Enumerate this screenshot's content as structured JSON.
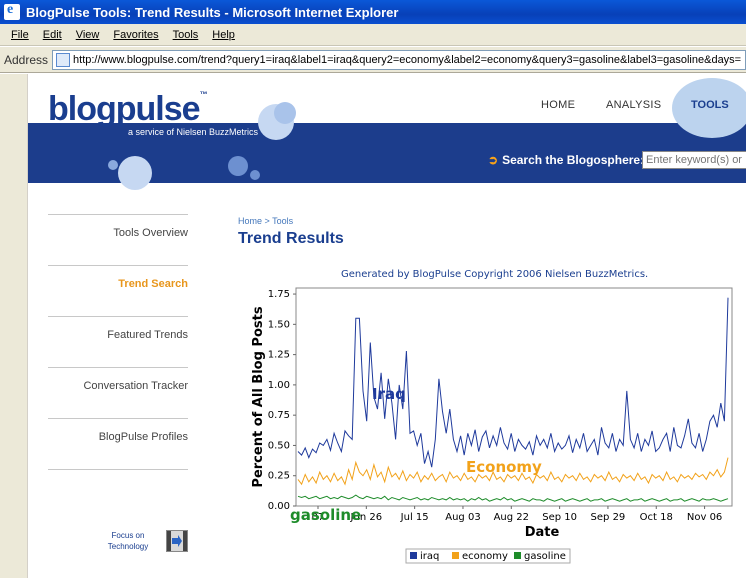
{
  "window": {
    "title": "BlogPulse Tools: Trend Results - Microsoft Internet Explorer"
  },
  "menu": [
    "File",
    "Edit",
    "View",
    "Favorites",
    "Tools",
    "Help"
  ],
  "address": {
    "label": "Address",
    "url": "http://www.blogpulse.com/trend?query1=iraq&label1=iraq&query2=economy&label2=economy&query3=gasoline&label3=gasoline&days="
  },
  "header": {
    "logo": "blogpulse",
    "logo_tm": "™",
    "tagline": "a service of Nielsen BuzzMetrics",
    "nav": {
      "home": "HOME",
      "analysis": "ANALYSIS",
      "tools": "TOOLS"
    },
    "search_label": "Search the Blogosphere:",
    "search_placeholder": "Enter keyword(s) or"
  },
  "sidebar": {
    "items": [
      "Tools Overview",
      "Trend Search",
      "Featured Trends",
      "Conversation Tracker",
      "BlogPulse Profiles"
    ],
    "active": "Trend Search",
    "focus": "Focus on Technology"
  },
  "main": {
    "breadcrumb": "Home > Tools",
    "title": "Trend Results",
    "generated": "Generated by BlogPulse Copyright 2006 Nielsen BuzzMetrics."
  },
  "colors": {
    "iraq": "#1f3a9c",
    "economy": "#f2a21a",
    "gasoline": "#1e8c2a",
    "brand_blue": "#1c3d8c"
  },
  "chart_data": {
    "type": "line",
    "ylabel": "Percent of All Blog Posts",
    "xlabel": "Date",
    "ylim": [
      0,
      1.8
    ],
    "yticks": [
      "0.00",
      "0.25",
      "0.50",
      "0.75",
      "1.00",
      "1.25",
      "1.50",
      "1.75"
    ],
    "xticks": [
      "07",
      "Jun 26",
      "Jul 15",
      "Aug 03",
      "Aug 22",
      "Sep 10",
      "Sep 29",
      "Oct 18",
      "Nov 06"
    ],
    "annotations": {
      "iraq": "Iraq",
      "economy": "Economy",
      "gasoline": "gasoline"
    },
    "legend": [
      "iraq",
      "economy",
      "gasoline"
    ],
    "legend_position": "bottom",
    "series": [
      {
        "name": "iraq",
        "values": [
          0.45,
          0.42,
          0.48,
          0.4,
          0.47,
          0.44,
          0.52,
          0.5,
          0.55,
          0.46,
          0.6,
          0.52,
          0.45,
          0.62,
          0.58,
          0.55,
          1.55,
          1.55,
          0.95,
          0.7,
          1.35,
          0.9,
          0.8,
          1.1,
          0.72,
          1.05,
          0.85,
          0.55,
          1.0,
          0.8,
          1.28,
          0.6,
          0.62,
          0.5,
          0.6,
          0.35,
          0.45,
          0.32,
          0.55,
          1.05,
          0.78,
          0.6,
          0.8,
          0.55,
          0.45,
          0.58,
          0.42,
          0.6,
          0.5,
          0.63,
          0.45,
          0.57,
          0.62,
          0.48,
          0.58,
          0.5,
          0.65,
          0.52,
          0.47,
          0.6,
          0.45,
          0.55,
          0.5,
          0.47,
          0.53,
          0.42,
          0.58,
          0.5,
          0.55,
          0.48,
          0.6,
          0.45,
          0.52,
          0.47,
          0.5,
          0.58,
          0.44,
          0.55,
          0.48,
          0.6,
          0.45,
          0.5,
          0.55,
          0.42,
          0.65,
          0.52,
          0.48,
          0.6,
          0.45,
          0.55,
          0.5,
          0.95,
          0.55,
          0.48,
          0.6,
          0.45,
          0.55,
          0.5,
          0.62,
          0.45,
          0.48,
          0.55,
          0.6,
          0.45,
          0.65,
          0.5,
          0.48,
          0.58,
          0.72,
          0.52,
          0.48,
          0.6,
          0.45,
          0.55,
          0.7,
          0.75,
          0.65,
          0.85,
          0.7,
          1.72
        ]
      },
      {
        "name": "economy",
        "values": [
          0.22,
          0.18,
          0.26,
          0.2,
          0.24,
          0.19,
          0.28,
          0.22,
          0.25,
          0.2,
          0.27,
          0.21,
          0.24,
          0.18,
          0.3,
          0.22,
          0.36,
          0.28,
          0.25,
          0.3,
          0.22,
          0.34,
          0.24,
          0.28,
          0.2,
          0.32,
          0.24,
          0.27,
          0.22,
          0.29,
          0.21,
          0.26,
          0.23,
          0.28,
          0.2,
          0.25,
          0.22,
          0.27,
          0.21,
          0.24,
          0.26,
          0.2,
          0.28,
          0.23,
          0.25,
          0.21,
          0.27,
          0.22,
          0.24,
          0.2,
          0.26,
          0.23,
          0.25,
          0.21,
          0.28,
          0.22,
          0.24,
          0.2,
          0.26,
          0.23,
          0.25,
          0.21,
          0.27,
          0.22,
          0.24,
          0.19,
          0.26,
          0.23,
          0.25,
          0.21,
          0.28,
          0.22,
          0.24,
          0.2,
          0.26,
          0.23,
          0.25,
          0.21,
          0.27,
          0.22,
          0.24,
          0.2,
          0.26,
          0.23,
          0.25,
          0.21,
          0.28,
          0.22,
          0.24,
          0.2,
          0.26,
          0.23,
          0.25,
          0.21,
          0.27,
          0.22,
          0.24,
          0.19,
          0.26,
          0.23,
          0.25,
          0.21,
          0.28,
          0.22,
          0.24,
          0.2,
          0.26,
          0.23,
          0.25,
          0.22,
          0.27,
          0.24,
          0.26,
          0.22,
          0.28,
          0.25,
          0.3,
          0.24,
          0.28,
          0.4
        ]
      },
      {
        "name": "gasoline",
        "values": [
          0.08,
          0.07,
          0.08,
          0.06,
          0.07,
          0.08,
          0.06,
          0.07,
          0.08,
          0.06,
          0.07,
          0.06,
          0.08,
          0.07,
          0.06,
          0.07,
          0.09,
          0.07,
          0.06,
          0.08,
          0.07,
          0.06,
          0.07,
          0.06,
          0.08,
          0.05,
          0.07,
          0.06,
          0.05,
          0.07,
          0.06,
          0.05,
          0.06,
          0.07,
          0.05,
          0.06,
          0.05,
          0.07,
          0.06,
          0.05,
          0.06,
          0.05,
          0.07,
          0.05,
          0.06,
          0.05,
          0.06,
          0.04,
          0.06,
          0.05,
          0.07,
          0.05,
          0.06,
          0.04,
          0.05,
          0.06,
          0.05,
          0.07,
          0.05,
          0.06,
          0.04,
          0.05,
          0.06,
          0.05,
          0.04,
          0.06,
          0.05,
          0.05,
          0.04,
          0.06,
          0.05,
          0.04,
          0.05,
          0.06,
          0.04,
          0.05,
          0.06,
          0.05,
          0.04,
          0.05,
          0.06,
          0.04,
          0.05,
          0.05,
          0.06,
          0.04,
          0.05,
          0.06,
          0.05,
          0.04,
          0.05,
          0.06,
          0.04,
          0.05,
          0.05,
          0.06,
          0.04,
          0.05,
          0.06,
          0.05,
          0.04,
          0.05,
          0.06,
          0.04,
          0.05,
          0.05,
          0.06,
          0.04,
          0.05,
          0.06,
          0.05,
          0.04,
          0.06,
          0.05,
          0.05,
          0.06,
          0.05,
          0.04,
          0.05,
          0.06
        ]
      }
    ]
  }
}
